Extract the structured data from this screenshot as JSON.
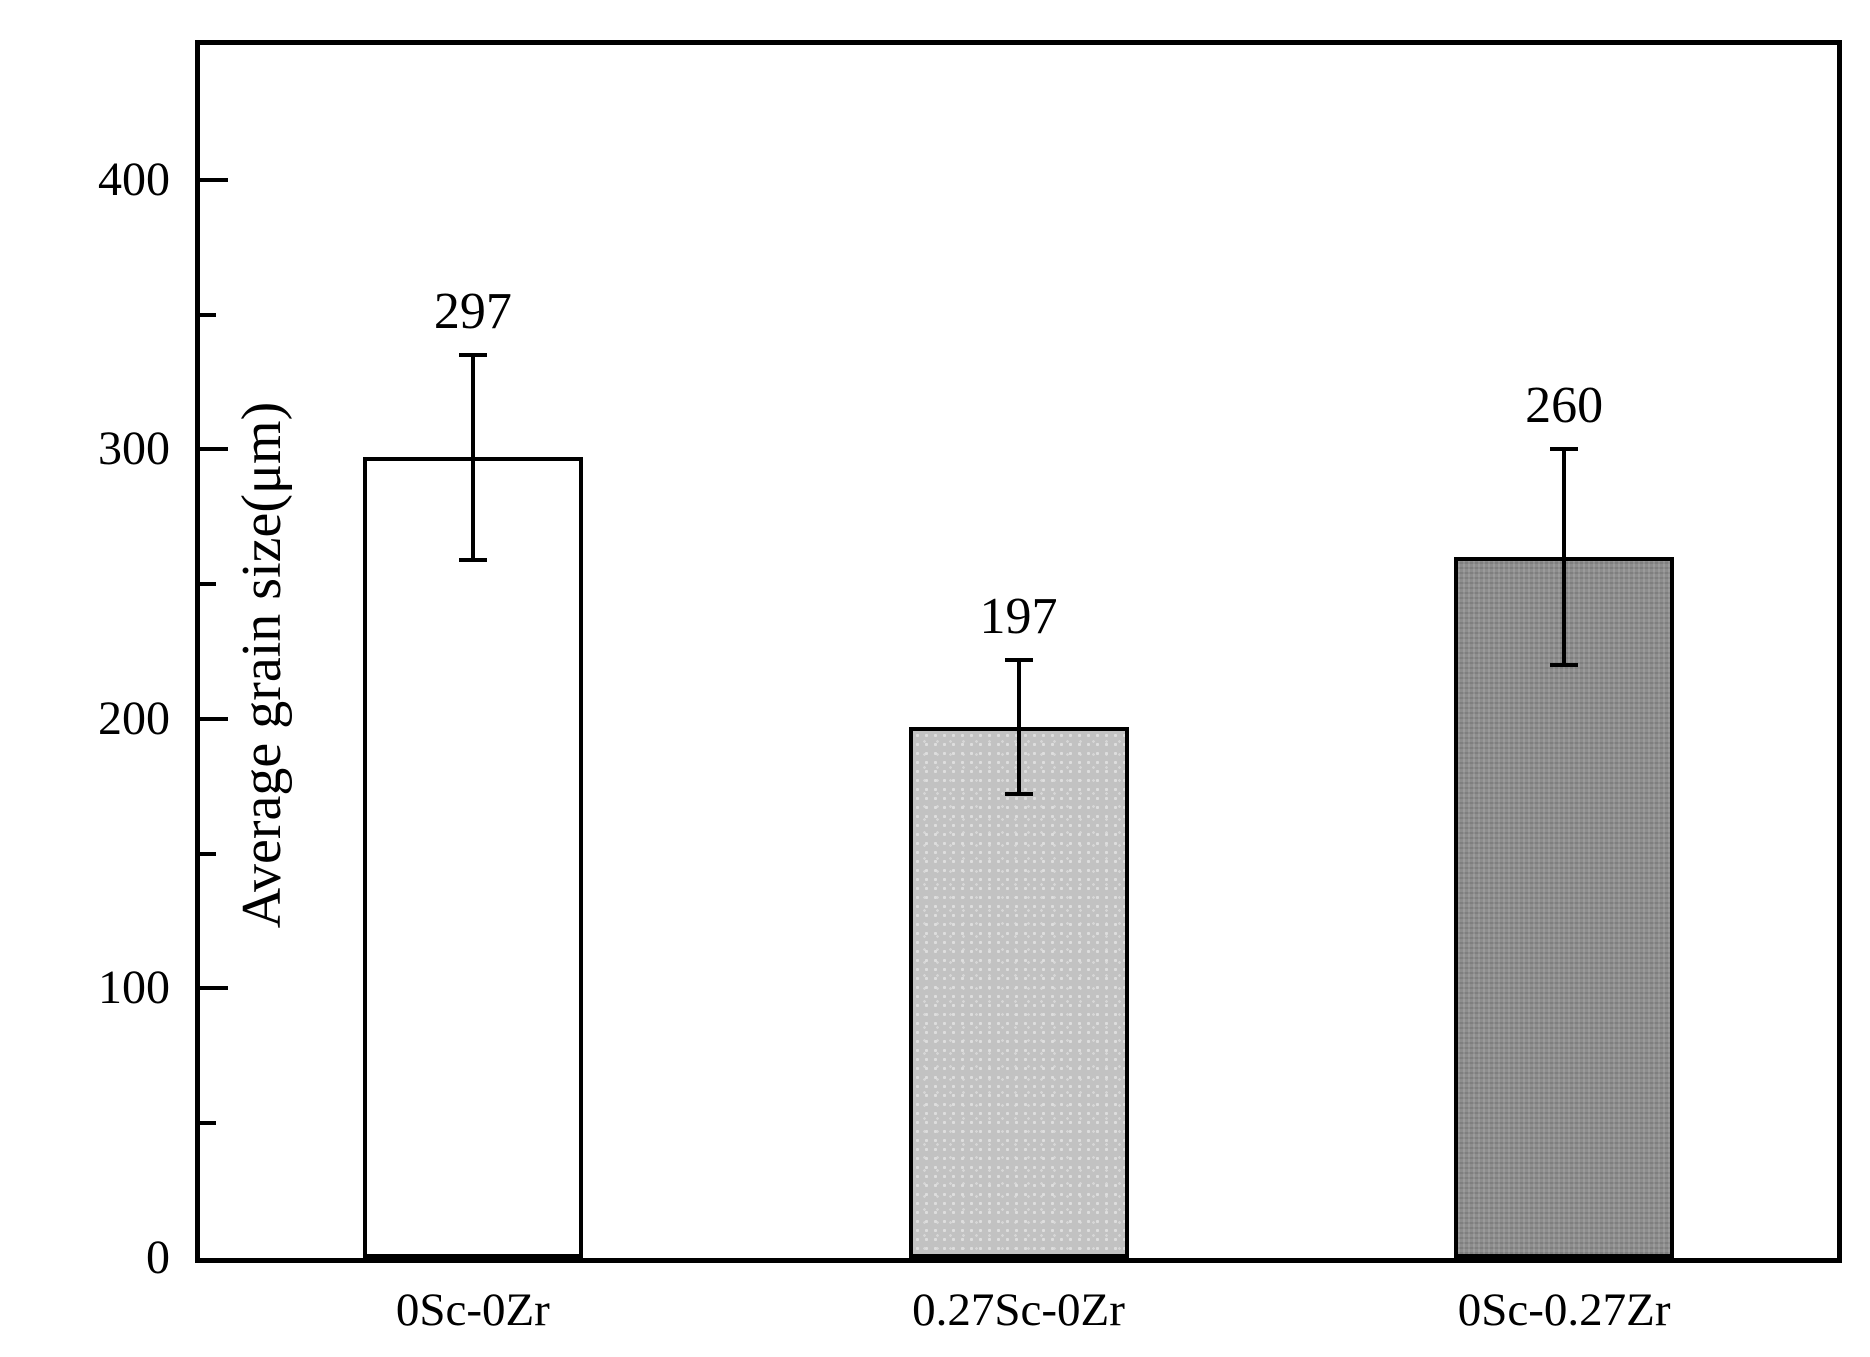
{
  "chart_data": {
    "type": "bar",
    "title": "",
    "xlabel": "",
    "ylabel": "Average grain size(μm)",
    "categories": [
      "0Sc-0Zr",
      "0.27Sc-0Zr",
      "0Sc-0.27Zr"
    ],
    "values": [
      297,
      197,
      260
    ],
    "error_bars_plus_minus": [
      38,
      25,
      40
    ],
    "data_labels": [
      "297",
      "197",
      "260"
    ],
    "ylim": [
      0,
      450
    ],
    "yticks": [
      0,
      100,
      200,
      300,
      400
    ],
    "ytick_labels": [
      "0",
      "100",
      "200",
      "300",
      "400"
    ],
    "minor_tick_step": 50,
    "grid": false,
    "legend": "none",
    "bar_fills": [
      "#ffffff",
      "#c2c2c2",
      "#8d8d8d"
    ],
    "bar_border_color": "#000000",
    "axis_color": "#000000",
    "background_color": "#ffffff"
  }
}
